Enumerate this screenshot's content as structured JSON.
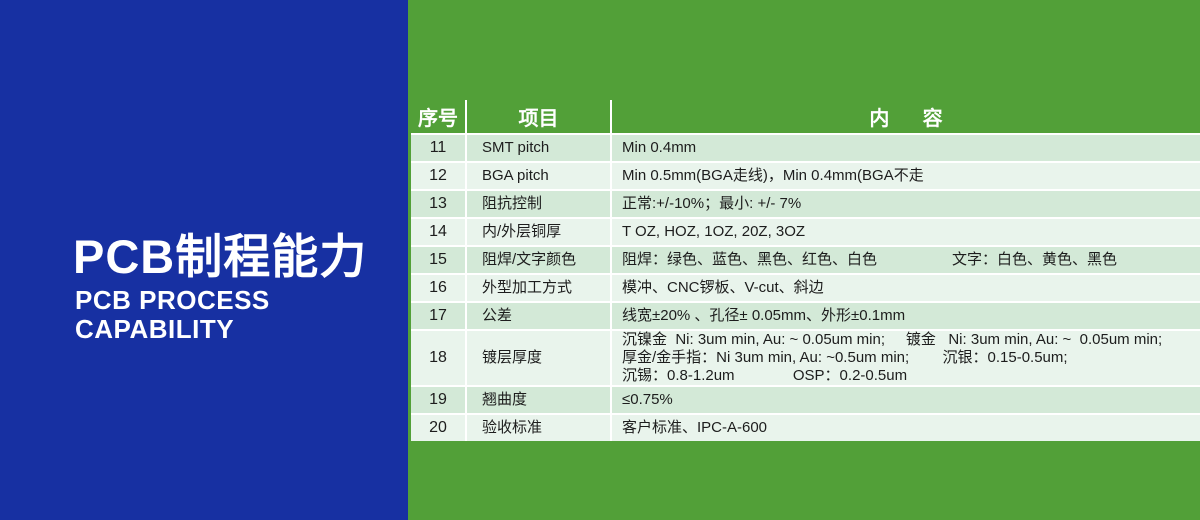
{
  "left_panel": {
    "title_cn": "PCB制程能力",
    "title_en_line1": "PCB PROCESS",
    "title_en_line2": "CAPABILITY"
  },
  "table": {
    "headers": {
      "no": "序号",
      "item": "项目",
      "content": "内      容"
    },
    "rows": [
      {
        "no": "11",
        "item": "SMT pitch",
        "content": [
          "Min 0.4mm"
        ]
      },
      {
        "no": "12",
        "item": "BGA pitch",
        "content": [
          "Min 0.5mm(BGA走线)，Min 0.4mm(BGA不走"
        ]
      },
      {
        "no": "13",
        "item": "阻抗控制",
        "content": [
          "正常:+/-10%；最小: +/- 7%"
        ]
      },
      {
        "no": "14",
        "item": "内/外层铜厚",
        "content": [
          "T OZ, HOZ, 1OZ, 20Z, 3OZ"
        ]
      },
      {
        "no": "15",
        "item": "阻焊/文字颜色",
        "content": [
          "阻焊：绿色、蓝色、黑色、红色、白色                  文字：白色、黄色、黑色"
        ]
      },
      {
        "no": "16",
        "item": "外型加工方式",
        "content": [
          "模冲、CNC锣板、V-cut、斜边"
        ]
      },
      {
        "no": "17",
        "item": "公差",
        "content": [
          "线宽±20% 、孔径± 0.05mm、外形±0.1mm"
        ]
      },
      {
        "no": "18",
        "item": "镀层厚度",
        "content": [
          "沉镍金  Ni: 3um min, Au: ~ 0.05um min;     镀金   Ni: 3um min, Au: ~  0.05um min;",
          "厚金/金手指：Ni 3um min, Au: ~0.5um min;        沉银：0.15-0.5um;",
          "沉锡：0.8-1.2um              OSP：0.2-0.5um"
        ]
      },
      {
        "no": "19",
        "item": "翘曲度",
        "content": [
          "≤0.75%"
        ]
      },
      {
        "no": "20",
        "item": "验收标准",
        "content": [
          "客户标准、IPC-A-600"
        ]
      }
    ]
  },
  "colors": {
    "blue": "#1730a2",
    "green": "#52a038",
    "row_odd": "#d3e9d7",
    "row_even": "#e9f4ec",
    "separator": "#ffffff",
    "header_text": "#ffffff",
    "body_text": "#1d1d1d"
  }
}
